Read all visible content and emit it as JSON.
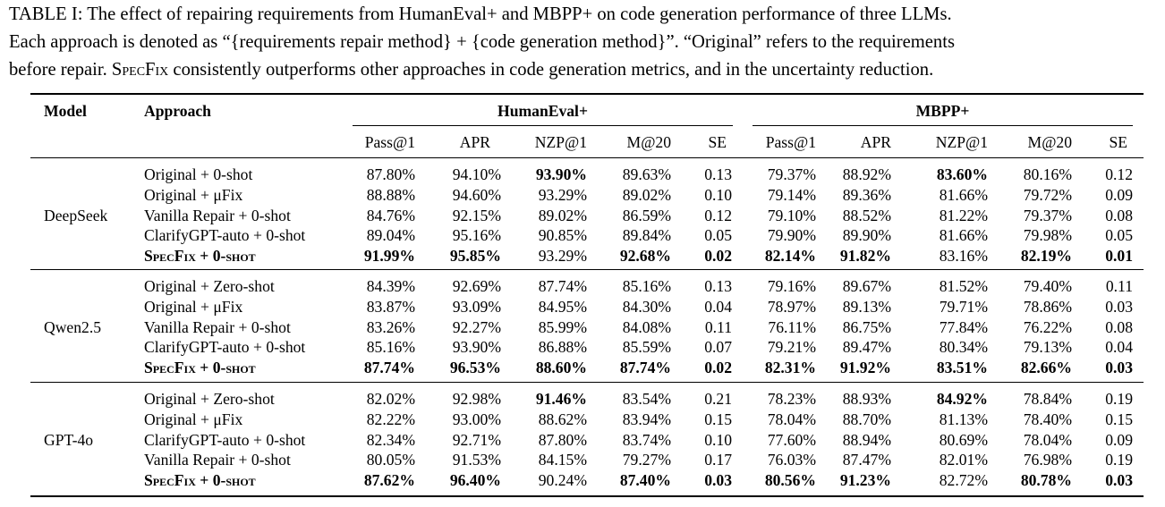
{
  "caption": {
    "label": "TABLE I:",
    "line1": "The effect of repairing requirements from HumanEval+ and MBPP+ on code generation performance of three LLMs.",
    "line2": "Each approach is denoted as “{requirements repair method} + {code generation method}”. “Original” refers to the requirements",
    "line3_pre": "before repair. ",
    "line3_sc": "SpecFix",
    "line3_post": " consistently outperforms other approaches in code generation metrics, and in the uncertainty reduction."
  },
  "headers": {
    "model": "Model",
    "approach": "Approach",
    "group1": "HumanEval+",
    "group2": "MBPP+",
    "metrics": [
      "Pass@1",
      "APR",
      "NZP@1",
      "M@20",
      "SE"
    ]
  },
  "groups": [
    {
      "model": "DeepSeek",
      "rows": [
        {
          "approach": "Original + 0-shot",
          "sc": false,
          "values": [
            "87.80%",
            "94.10%",
            "93.90%",
            "89.63%",
            "0.13",
            "79.37%",
            "88.92%",
            "83.60%",
            "80.16%",
            "0.12"
          ],
          "bold": [
            false,
            false,
            true,
            false,
            false,
            false,
            false,
            true,
            false,
            false
          ]
        },
        {
          "approach": "Original + μFix",
          "sc": false,
          "values": [
            "88.88%",
            "94.60%",
            "93.29%",
            "89.02%",
            "0.10",
            "79.14%",
            "89.36%",
            "81.66%",
            "79.72%",
            "0.09"
          ],
          "bold": [
            false,
            false,
            false,
            false,
            false,
            false,
            false,
            false,
            false,
            false
          ]
        },
        {
          "approach": "Vanilla Repair + 0-shot",
          "sc": false,
          "values": [
            "84.76%",
            "92.15%",
            "89.02%",
            "86.59%",
            "0.12",
            "79.10%",
            "88.52%",
            "81.22%",
            "79.37%",
            "0.08"
          ],
          "bold": [
            false,
            false,
            false,
            false,
            false,
            false,
            false,
            false,
            false,
            false
          ]
        },
        {
          "approach": "ClarifyGPT-auto + 0-shot",
          "sc": false,
          "values": [
            "89.04%",
            "95.16%",
            "90.85%",
            "89.84%",
            "0.05",
            "79.90%",
            "89.90%",
            "81.66%",
            "79.98%",
            "0.05"
          ],
          "bold": [
            false,
            false,
            false,
            false,
            false,
            false,
            false,
            false,
            false,
            false
          ]
        },
        {
          "approach": "SpecFix + 0-shot",
          "sc": true,
          "values": [
            "91.99%",
            "95.85%",
            "93.29%",
            "92.68%",
            "0.02",
            "82.14%",
            "91.82%",
            "83.16%",
            "82.19%",
            "0.01"
          ],
          "bold": [
            true,
            true,
            false,
            true,
            true,
            true,
            true,
            false,
            true,
            true
          ]
        }
      ]
    },
    {
      "model": "Qwen2.5",
      "rows": [
        {
          "approach": "Original + Zero-shot",
          "sc": false,
          "values": [
            "84.39%",
            "92.69%",
            "87.74%",
            "85.16%",
            "0.13",
            "79.16%",
            "89.67%",
            "81.52%",
            "79.40%",
            "0.11"
          ],
          "bold": [
            false,
            false,
            false,
            false,
            false,
            false,
            false,
            false,
            false,
            false
          ]
        },
        {
          "approach": "Original + μFix",
          "sc": false,
          "values": [
            "83.87%",
            "93.09%",
            "84.95%",
            "84.30%",
            "0.04",
            "78.97%",
            "89.13%",
            "79.71%",
            "78.86%",
            "0.03"
          ],
          "bold": [
            false,
            false,
            false,
            false,
            false,
            false,
            false,
            false,
            false,
            false
          ]
        },
        {
          "approach": "Vanilla Repair + 0-shot",
          "sc": false,
          "values": [
            "83.26%",
            "92.27%",
            "85.99%",
            "84.08%",
            "0.11",
            "76.11%",
            "86.75%",
            "77.84%",
            "76.22%",
            "0.08"
          ],
          "bold": [
            false,
            false,
            false,
            false,
            false,
            false,
            false,
            false,
            false,
            false
          ]
        },
        {
          "approach": "ClarifyGPT-auto + 0-shot",
          "sc": false,
          "values": [
            "85.16%",
            "93.90%",
            "86.88%",
            "85.59%",
            "0.07",
            "79.21%",
            "89.47%",
            "80.34%",
            "79.13%",
            "0.04"
          ],
          "bold": [
            false,
            false,
            false,
            false,
            false,
            false,
            false,
            false,
            false,
            false
          ]
        },
        {
          "approach": "SpecFix + 0-shot",
          "sc": true,
          "values": [
            "87.74%",
            "96.53%",
            "88.60%",
            "87.74%",
            "0.02",
            "82.31%",
            "91.92%",
            "83.51%",
            "82.66%",
            "0.03"
          ],
          "bold": [
            true,
            true,
            true,
            true,
            true,
            true,
            true,
            true,
            true,
            true
          ]
        }
      ]
    },
    {
      "model": "GPT-4o",
      "rows": [
        {
          "approach": "Original + Zero-shot",
          "sc": false,
          "values": [
            "82.02%",
            "92.98%",
            "91.46%",
            "83.54%",
            "0.21",
            "78.23%",
            "88.93%",
            "84.92%",
            "78.84%",
            "0.19"
          ],
          "bold": [
            false,
            false,
            true,
            false,
            false,
            false,
            false,
            true,
            false,
            false
          ]
        },
        {
          "approach": "Original + μFix",
          "sc": false,
          "values": [
            "82.22%",
            "93.00%",
            "88.62%",
            "83.94%",
            "0.15",
            "78.04%",
            "88.70%",
            "81.13%",
            "78.40%",
            "0.15"
          ],
          "bold": [
            false,
            false,
            false,
            false,
            false,
            false,
            false,
            false,
            false,
            false
          ]
        },
        {
          "approach": "ClarifyGPT-auto + 0-shot",
          "sc": false,
          "values": [
            "82.34%",
            "92.71%",
            "87.80%",
            "83.74%",
            "0.10",
            "77.60%",
            "88.94%",
            "80.69%",
            "78.04%",
            "0.09"
          ],
          "bold": [
            false,
            false,
            false,
            false,
            false,
            false,
            false,
            false,
            false,
            false
          ]
        },
        {
          "approach": "Vanilla Repair + 0-shot",
          "sc": false,
          "values": [
            "80.05%",
            "91.53%",
            "84.15%",
            "79.27%",
            "0.17",
            "76.03%",
            "87.47%",
            "82.01%",
            "76.98%",
            "0.19"
          ],
          "bold": [
            false,
            false,
            false,
            false,
            false,
            false,
            false,
            false,
            false,
            false
          ]
        },
        {
          "approach": "SpecFix + 0-shot",
          "sc": true,
          "values": [
            "87.62%",
            "96.40%",
            "90.24%",
            "87.40%",
            "0.03",
            "80.56%",
            "91.23%",
            "82.72%",
            "80.78%",
            "0.03"
          ],
          "bold": [
            true,
            true,
            false,
            true,
            true,
            true,
            true,
            false,
            true,
            true
          ]
        }
      ]
    }
  ]
}
